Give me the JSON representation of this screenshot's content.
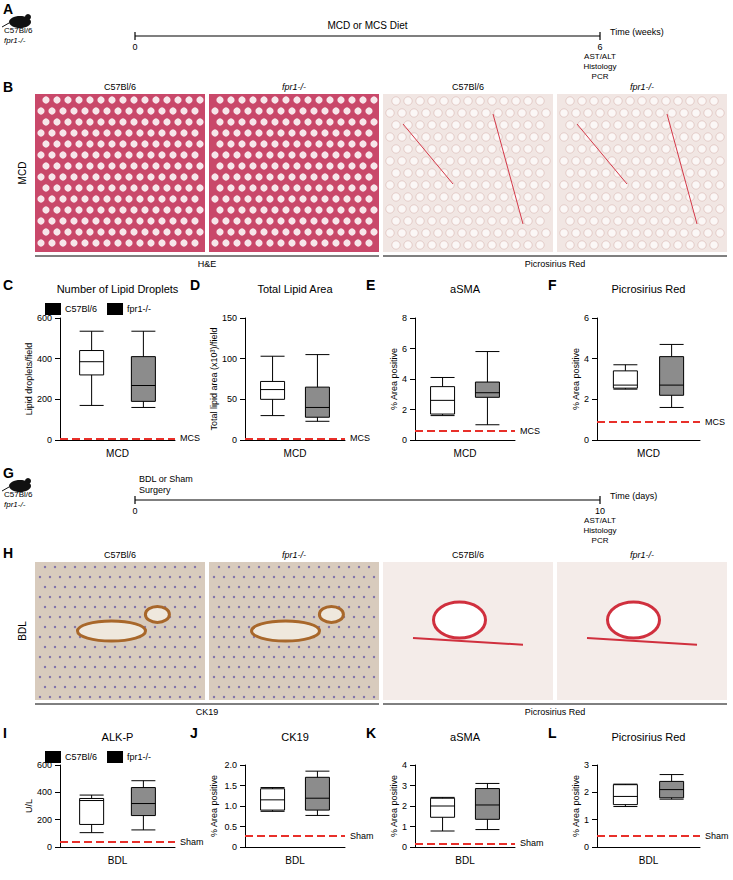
{
  "chart_data": [
    {
      "type": "boxplot",
      "panel": "C",
      "title": "Number of Lipid Droplets",
      "y_label": "Lipid droplets/field",
      "categories": [
        "MCD"
      ],
      "ylim": [
        0,
        600
      ],
      "yticks": [
        0,
        200,
        400,
        600
      ],
      "grid": false,
      "legend": "top",
      "reference": {
        "label": "MCS",
        "value": 8,
        "color": "#e8302a"
      },
      "series": [
        {
          "name": "C57Bl/6",
          "color": "#ffffff",
          "values": [
            [
              170,
              320,
              385,
              440,
              535
            ]
          ]
        },
        {
          "name": "fpr1-/-",
          "color": "#8c8c8c",
          "values": [
            [
              160,
              190,
              268,
              410,
              535
            ]
          ]
        }
      ]
    },
    {
      "type": "boxplot",
      "panel": "D",
      "title": "Total Lipid Area",
      "y_label": "Total lipid area (x10³)/field",
      "categories": [
        "MCD"
      ],
      "ylim": [
        0,
        150
      ],
      "yticks": [
        0,
        50,
        100,
        150
      ],
      "grid": false,
      "reference": {
        "label": "MCS",
        "value": 2,
        "color": "#e8302a"
      },
      "series": [
        {
          "name": "C57Bl/6",
          "color": "#ffffff",
          "values": [
            [
              30,
              50,
              62,
              72,
              103
            ]
          ]
        },
        {
          "name": "fpr1-/-",
          "color": "#8c8c8c",
          "values": [
            [
              23,
              28,
              40,
              65,
              105
            ]
          ]
        }
      ]
    },
    {
      "type": "boxplot",
      "panel": "E",
      "title": "aSMA",
      "y_label": "% Area positive",
      "categories": [
        "MCD"
      ],
      "ylim": [
        0,
        8
      ],
      "yticks": [
        0,
        2,
        4,
        6,
        8
      ],
      "grid": false,
      "reference": {
        "label": "MCS",
        "value": 0.6,
        "color": "#e8302a"
      },
      "series": [
        {
          "name": "C57Bl/6",
          "color": "#ffffff",
          "values": [
            [
              1.6,
              1.7,
              2.6,
              3.5,
              4.1
            ]
          ]
        },
        {
          "name": "fpr1-/-",
          "color": "#8c8c8c",
          "values": [
            [
              1.0,
              2.8,
              3.1,
              3.8,
              5.8
            ]
          ]
        }
      ]
    },
    {
      "type": "boxplot",
      "panel": "F",
      "title": "Picrosirius Red",
      "y_label": "% Area positive",
      "categories": [
        "MCD"
      ],
      "ylim": [
        0,
        6
      ],
      "yticks": [
        0,
        2,
        4,
        6
      ],
      "grid": false,
      "reference": {
        "label": "MCS",
        "value": 0.9,
        "color": "#e8302a"
      },
      "series": [
        {
          "name": "C57Bl/6",
          "color": "#ffffff",
          "values": [
            [
              2.5,
              2.55,
              2.7,
              3.4,
              3.7
            ]
          ]
        },
        {
          "name": "fpr1-/-",
          "color": "#8c8c8c",
          "values": [
            [
              1.6,
              2.2,
              2.7,
              4.1,
              4.7
            ]
          ]
        }
      ]
    },
    {
      "type": "boxplot",
      "panel": "I",
      "title": "ALK-P",
      "y_label": "U/L",
      "categories": [
        "BDL"
      ],
      "ylim": [
        0,
        600
      ],
      "yticks": [
        0,
        200,
        400,
        600
      ],
      "grid": false,
      "legend": "top",
      "reference": {
        "label": "Sham",
        "value": 35,
        "color": "#e8302a"
      },
      "series": [
        {
          "name": "C57Bl/6",
          "color": "#ffffff",
          "values": [
            [
              105,
              165,
              340,
              355,
              380
            ]
          ]
        },
        {
          "name": "fpr1-/-",
          "color": "#8c8c8c",
          "values": [
            [
              125,
              230,
              318,
              435,
              485
            ]
          ]
        }
      ]
    },
    {
      "type": "boxplot",
      "panel": "J",
      "title": "CK19",
      "y_label": "% Area positive",
      "categories": [
        "BDL"
      ],
      "ylim": [
        0,
        2
      ],
      "yticks": [
        0,
        0.5,
        {
          "value": 1,
          "label": "1.0"
        },
        1.5,
        {
          "value": 2,
          "label": "2.0"
        }
      ],
      "grid": false,
      "reference": {
        "label": "Sham",
        "value": 0.28,
        "color": "#e8302a"
      },
      "series": [
        {
          "name": "C57Bl/6",
          "color": "#ffffff",
          "values": [
            [
              0.87,
              0.9,
              1.15,
              1.42,
              1.45
            ]
          ]
        },
        {
          "name": "fpr1-/-",
          "color": "#8c8c8c",
          "values": [
            [
              0.77,
              0.9,
              1.19,
              1.7,
              1.85
            ]
          ]
        }
      ]
    },
    {
      "type": "boxplot",
      "panel": "K",
      "title": "aSMA",
      "y_label": "% Area positive",
      "categories": [
        "BDL"
      ],
      "ylim": [
        0,
        4
      ],
      "yticks": [
        0,
        1,
        2,
        3,
        4
      ],
      "grid": false,
      "reference": {
        "label": "Sham",
        "value": 0.18,
        "color": "#e8302a"
      },
      "series": [
        {
          "name": "C57Bl/6",
          "color": "#ffffff",
          "values": [
            [
              0.78,
              1.45,
              2.0,
              2.38,
              2.42
            ]
          ]
        },
        {
          "name": "fpr1-/-",
          "color": "#8c8c8c",
          "values": [
            [
              0.85,
              1.35,
              2.05,
              2.85,
              3.1
            ]
          ]
        }
      ]
    },
    {
      "type": "boxplot",
      "panel": "L",
      "title": "Picrosirius Red",
      "y_label": "% Area positive",
      "categories": [
        "BDL"
      ],
      "ylim": [
        0,
        3
      ],
      "yticks": [
        0,
        1,
        2,
        3
      ],
      "grid": false,
      "reference": {
        "label": "Sham",
        "value": 0.42,
        "color": "#e8302a"
      },
      "series": [
        {
          "name": "C57Bl/6",
          "color": "#ffffff",
          "values": [
            [
              1.48,
              1.55,
              1.85,
              2.28,
              2.3
            ]
          ]
        },
        {
          "name": "fpr1-/-",
          "color": "#8c8c8c",
          "values": [
            [
              1.75,
              1.8,
              2.1,
              2.4,
              2.65
            ]
          ]
        }
      ]
    }
  ],
  "timelines": [
    {
      "panel": "A",
      "strains": [
        "C57Bl/6",
        "fpr1-/-"
      ],
      "treatment": "MCD or MCS Diet",
      "axis_label": "Time (weeks)",
      "start": 0,
      "end": 6,
      "readouts": [
        "AST/ALT",
        "Histology",
        "PCR"
      ]
    },
    {
      "panel": "G",
      "strains": [
        "C57Bl/6",
        "fpr1-/-"
      ],
      "treatment": "BDL or Sham\nSurgery",
      "axis_label": "Time (days)",
      "start": 0,
      "end": 10,
      "readouts": [
        "AST/ALT",
        "Histology",
        "PCR"
      ]
    }
  ],
  "micrographs": [
    {
      "panel": "B",
      "row_label": "MCD",
      "groups": [
        {
          "label": "H&E",
          "titles": [
            "C57Bl/6",
            "fpr1-/-"
          ]
        },
        {
          "label": "Picrosirius Red",
          "titles": [
            "C57Bl/6",
            "fpr1-/-"
          ]
        }
      ]
    },
    {
      "panel": "H",
      "row_label": "BDL",
      "groups": [
        {
          "label": "CK19",
          "titles": [
            "C57Bl/6",
            "fpr1-/-"
          ]
        },
        {
          "label": "Picrosirius Red",
          "titles": [
            "C57Bl/6",
            "fpr1-/-"
          ]
        }
      ]
    }
  ]
}
